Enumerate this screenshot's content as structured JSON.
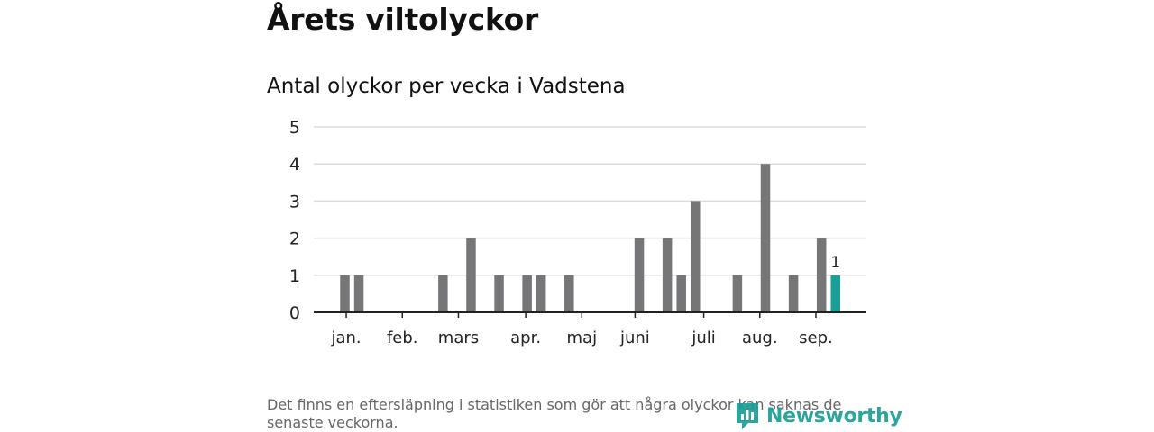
{
  "header": {
    "title": "Årets viltolyckor"
  },
  "footer": {
    "note": "Det finns en eftersläpning i statistiken som gör att några olyckor kan saknas de senaste veckorna.",
    "brand": "Newsworthy"
  },
  "colors": {
    "bar": "#767578",
    "highlight": "#1a9e96",
    "grid": "#dcdcdc",
    "axis": "#222222"
  },
  "icons": {
    "logo": "newsworthy-logo-icon"
  },
  "chart_data": {
    "type": "bar",
    "title": "Antal olyckor per vecka i Vadstena",
    "xlabel": "",
    "ylabel": "",
    "ylim": [
      0,
      5
    ],
    "yticks": [
      0,
      1,
      2,
      3,
      4,
      5
    ],
    "grid": true,
    "x_unit": "vecka",
    "weeks": [
      1,
      2,
      3,
      4,
      5,
      6,
      7,
      8,
      9,
      10,
      11,
      12,
      13,
      14,
      15,
      16,
      17,
      18,
      19,
      20,
      21,
      22,
      23,
      24,
      25,
      26,
      27,
      28,
      29,
      30,
      31,
      32,
      33,
      34,
      35,
      36,
      37,
      38
    ],
    "values": [
      0,
      0,
      1,
      1,
      0,
      0,
      0,
      0,
      0,
      1,
      0,
      2,
      0,
      1,
      0,
      1,
      1,
      0,
      1,
      0,
      0,
      0,
      0,
      2,
      0,
      2,
      1,
      3,
      0,
      0,
      1,
      0,
      4,
      0,
      1,
      0,
      2,
      1
    ],
    "highlight_week": 38,
    "annotations": [
      {
        "week": 38,
        "text": "1"
      }
    ],
    "month_ticks": [
      {
        "label": "jan.",
        "week": 3.1
      },
      {
        "label": "feb.",
        "week": 7.1
      },
      {
        "label": "mars",
        "week": 11.1
      },
      {
        "label": "apr.",
        "week": 15.9
      },
      {
        "label": "maj",
        "week": 19.9
      },
      {
        "label": "juni",
        "week": 23.7
      },
      {
        "label": "juli",
        "week": 28.6
      },
      {
        "label": "aug.",
        "week": 32.6
      },
      {
        "label": "sep.",
        "week": 36.6
      }
    ]
  }
}
